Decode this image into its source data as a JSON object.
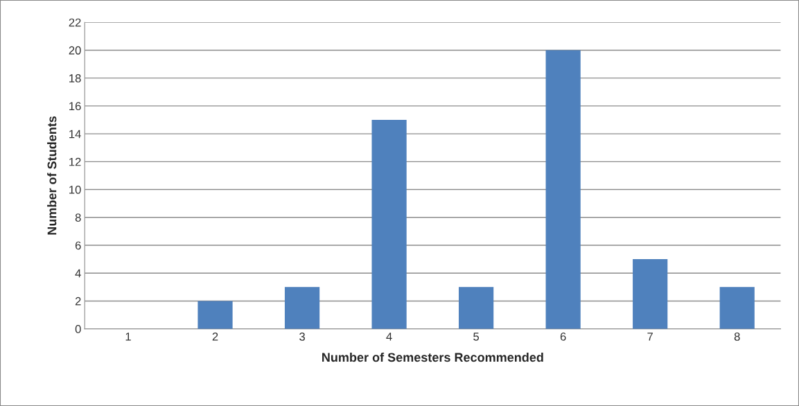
{
  "chart_data": {
    "type": "bar",
    "xlabel": "Number of Semesters Recommended",
    "ylabel": "Number of Students",
    "categories": [
      "1",
      "2",
      "3",
      "4",
      "5",
      "6",
      "7",
      "8"
    ],
    "values": [
      0,
      2,
      3,
      15,
      3,
      20,
      5,
      3
    ],
    "color": "#4f81bd",
    "ylim": [
      0,
      22
    ],
    "yticks": [
      0,
      2,
      4,
      6,
      8,
      10,
      12,
      14,
      16,
      18,
      20,
      22
    ],
    "grid": "y",
    "legend": false
  }
}
